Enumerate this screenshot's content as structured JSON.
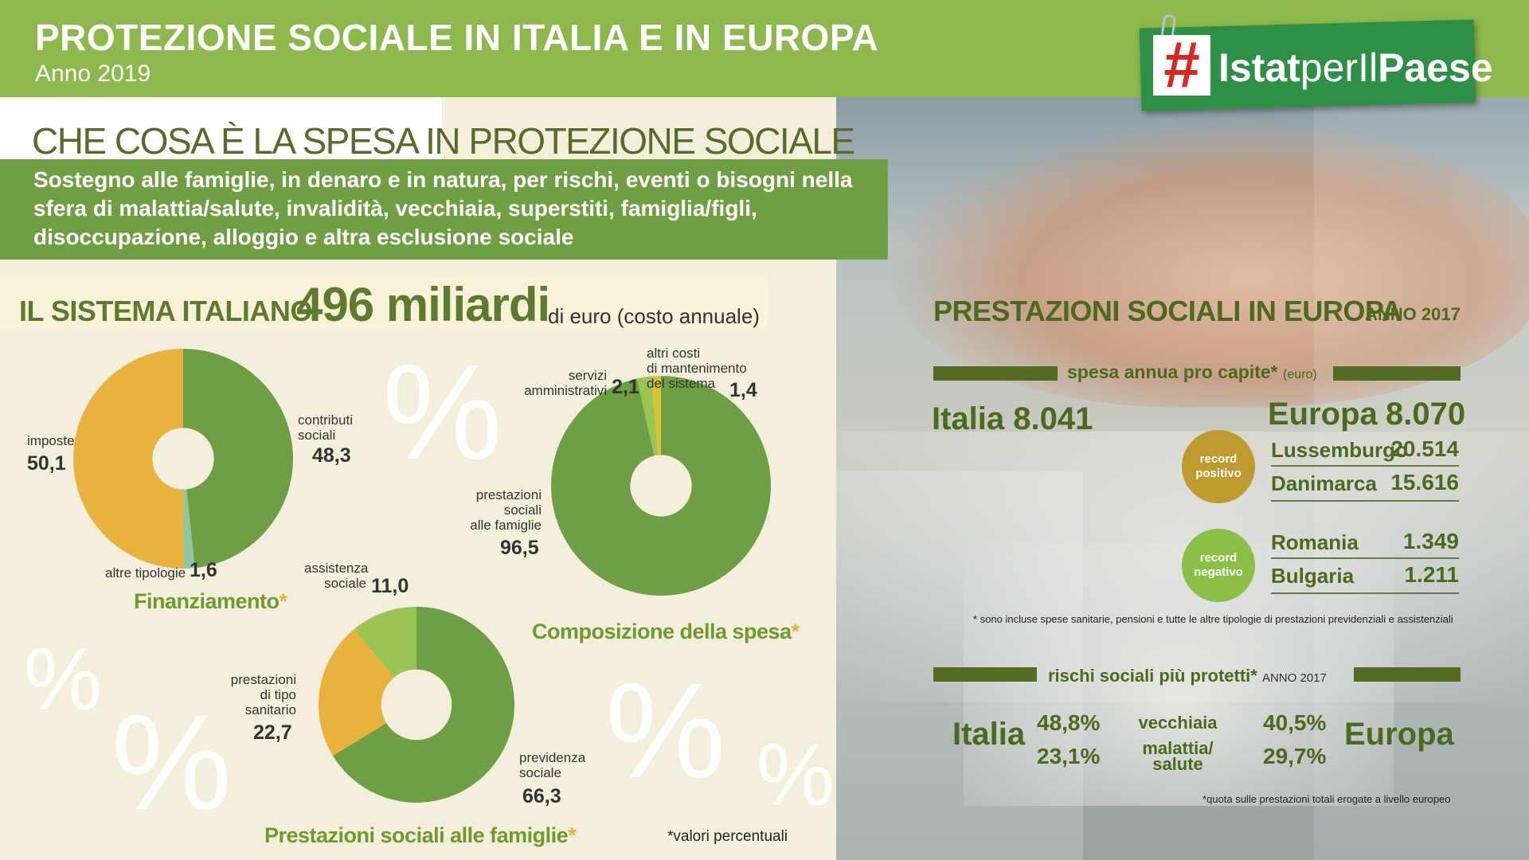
{
  "header": {
    "title": "PROTEZIONE SOCIALE IN ITALIA E IN EUROPA",
    "subtitle": "Anno 2019"
  },
  "logo": {
    "hash": "#",
    "text_bold1": "Istat",
    "text_light": "perIl",
    "text_bold2": "Paese",
    "color": "#2e8f46"
  },
  "intro": {
    "title": "CHE COSA È LA SPESA IN PROTEZIONE SOCIALE",
    "description": "Sostegno alle famiglie, in denaro e in natura, per rischi, eventi o bisogni nella sfera di malattia/salute, invalidità, vecchiaia, superstiti, famiglia/figli, disoccupazione, alloggio e altra esclusione sociale"
  },
  "sistema": {
    "label": "IL SISTEMA ITALIANO",
    "value": "496 miliardi",
    "unit": "di euro (costo annuale)"
  },
  "decor": {
    "percent": "%"
  },
  "chart_data": [
    {
      "type": "pie",
      "title": "Finanziamento",
      "title_mark": "*",
      "categories": [
        "contributi sociali",
        "altre tipologie",
        "imposte"
      ],
      "values": [
        48.3,
        1.6,
        50.1
      ],
      "colors": [
        "#6e9f45",
        "#8ec6a0",
        "#e9b23c"
      ],
      "labels": {
        "contributi": [
          "contributi",
          "sociali"
        ],
        "contributi_val": "48,3",
        "altre": "altre tipologie",
        "altre_val": "1,6",
        "imposte": "imposte",
        "imposte_val": "50,1"
      }
    },
    {
      "type": "pie",
      "title": "Composizione della spesa",
      "title_mark": "*",
      "categories": [
        "prestazioni sociali alle famiglie",
        "servizi amministrativi",
        "altri costi di mantenimento del sistema"
      ],
      "values": [
        96.5,
        2.1,
        1.4
      ],
      "colors": [
        "#6e9f45",
        "#9cc455",
        "#d9c236"
      ],
      "labels": {
        "prestazioni": [
          "prestazioni",
          "sociali",
          "alle famiglie"
        ],
        "prestazioni_val": "96,5",
        "servizi": [
          "servizi",
          "amministrativi"
        ],
        "servizi_val": "2,1",
        "altri": [
          "altri costi",
          "di mantenimento",
          "del sistema"
        ],
        "altri_val": "1,4"
      }
    },
    {
      "type": "pie",
      "title": "Prestazioni sociali alle famiglie",
      "title_mark": "*",
      "categories": [
        "previdenza sociale",
        "prestazioni di tipo sanitario",
        "assistenza sociale"
      ],
      "values": [
        66.3,
        22.7,
        11.0
      ],
      "colors": [
        "#6e9f45",
        "#e9b23c",
        "#9cc455"
      ],
      "labels": {
        "previdenza": [
          "previdenza",
          "sociale"
        ],
        "previdenza_val": "66,3",
        "sanitario": [
          "prestazioni",
          "di tipo",
          "sanitario"
        ],
        "sanitario_val": "22,7",
        "assistenza": [
          "assistenza",
          "sociale"
        ],
        "assistenza_val": "11,0"
      }
    }
  ],
  "footnote_left": "*valori percentuali",
  "europa": {
    "title": "PRESTAZIONI SOCIALI IN EUROPA",
    "year": "ANNO 2017",
    "spesa_header": "spesa annua pro capite",
    "spesa_header_mark": "*",
    "spesa_unit": "(euro)",
    "italia_label": "Italia",
    "italia_value": "8.041",
    "europa_label": "Europa",
    "europa_value": "8.070",
    "record_positivo": [
      "record",
      "positivo"
    ],
    "record_negativo": [
      "record",
      "negativo"
    ],
    "positivi": [
      {
        "country": "Lussemburgo",
        "value": "20.514"
      },
      {
        "country": "Danimarca",
        "value": "15.616"
      }
    ],
    "negativi": [
      {
        "country": "Romania",
        "value": "1.349"
      },
      {
        "country": "Bulgaria",
        "value": "1.211"
      }
    ],
    "colors": {
      "positivo": "#bf9a2e",
      "negativo": "#8bbf46"
    },
    "footnote1": "* sono incluse spese sanitarie, pensioni e tutte le altre tipologie di prestazioni previdenziali e assistenziali",
    "rischi_header": "rischi sociali più protetti",
    "rischi_mark": "*",
    "rischi_year": "ANNO 2017",
    "rischi_italia_label": "Italia",
    "rischi_europa_label": "Europa",
    "rischi": [
      {
        "name": "vecchiaia",
        "italia": "48,8%",
        "europa": "40,5%"
      },
      {
        "name": "malattia/\nsalute",
        "name1": "malattia/",
        "name2": "salute",
        "italia": "23,1%",
        "europa": "29,7%"
      }
    ],
    "footnote2": "*quota sulle prestazioni totali erogate  a livello europeo"
  }
}
